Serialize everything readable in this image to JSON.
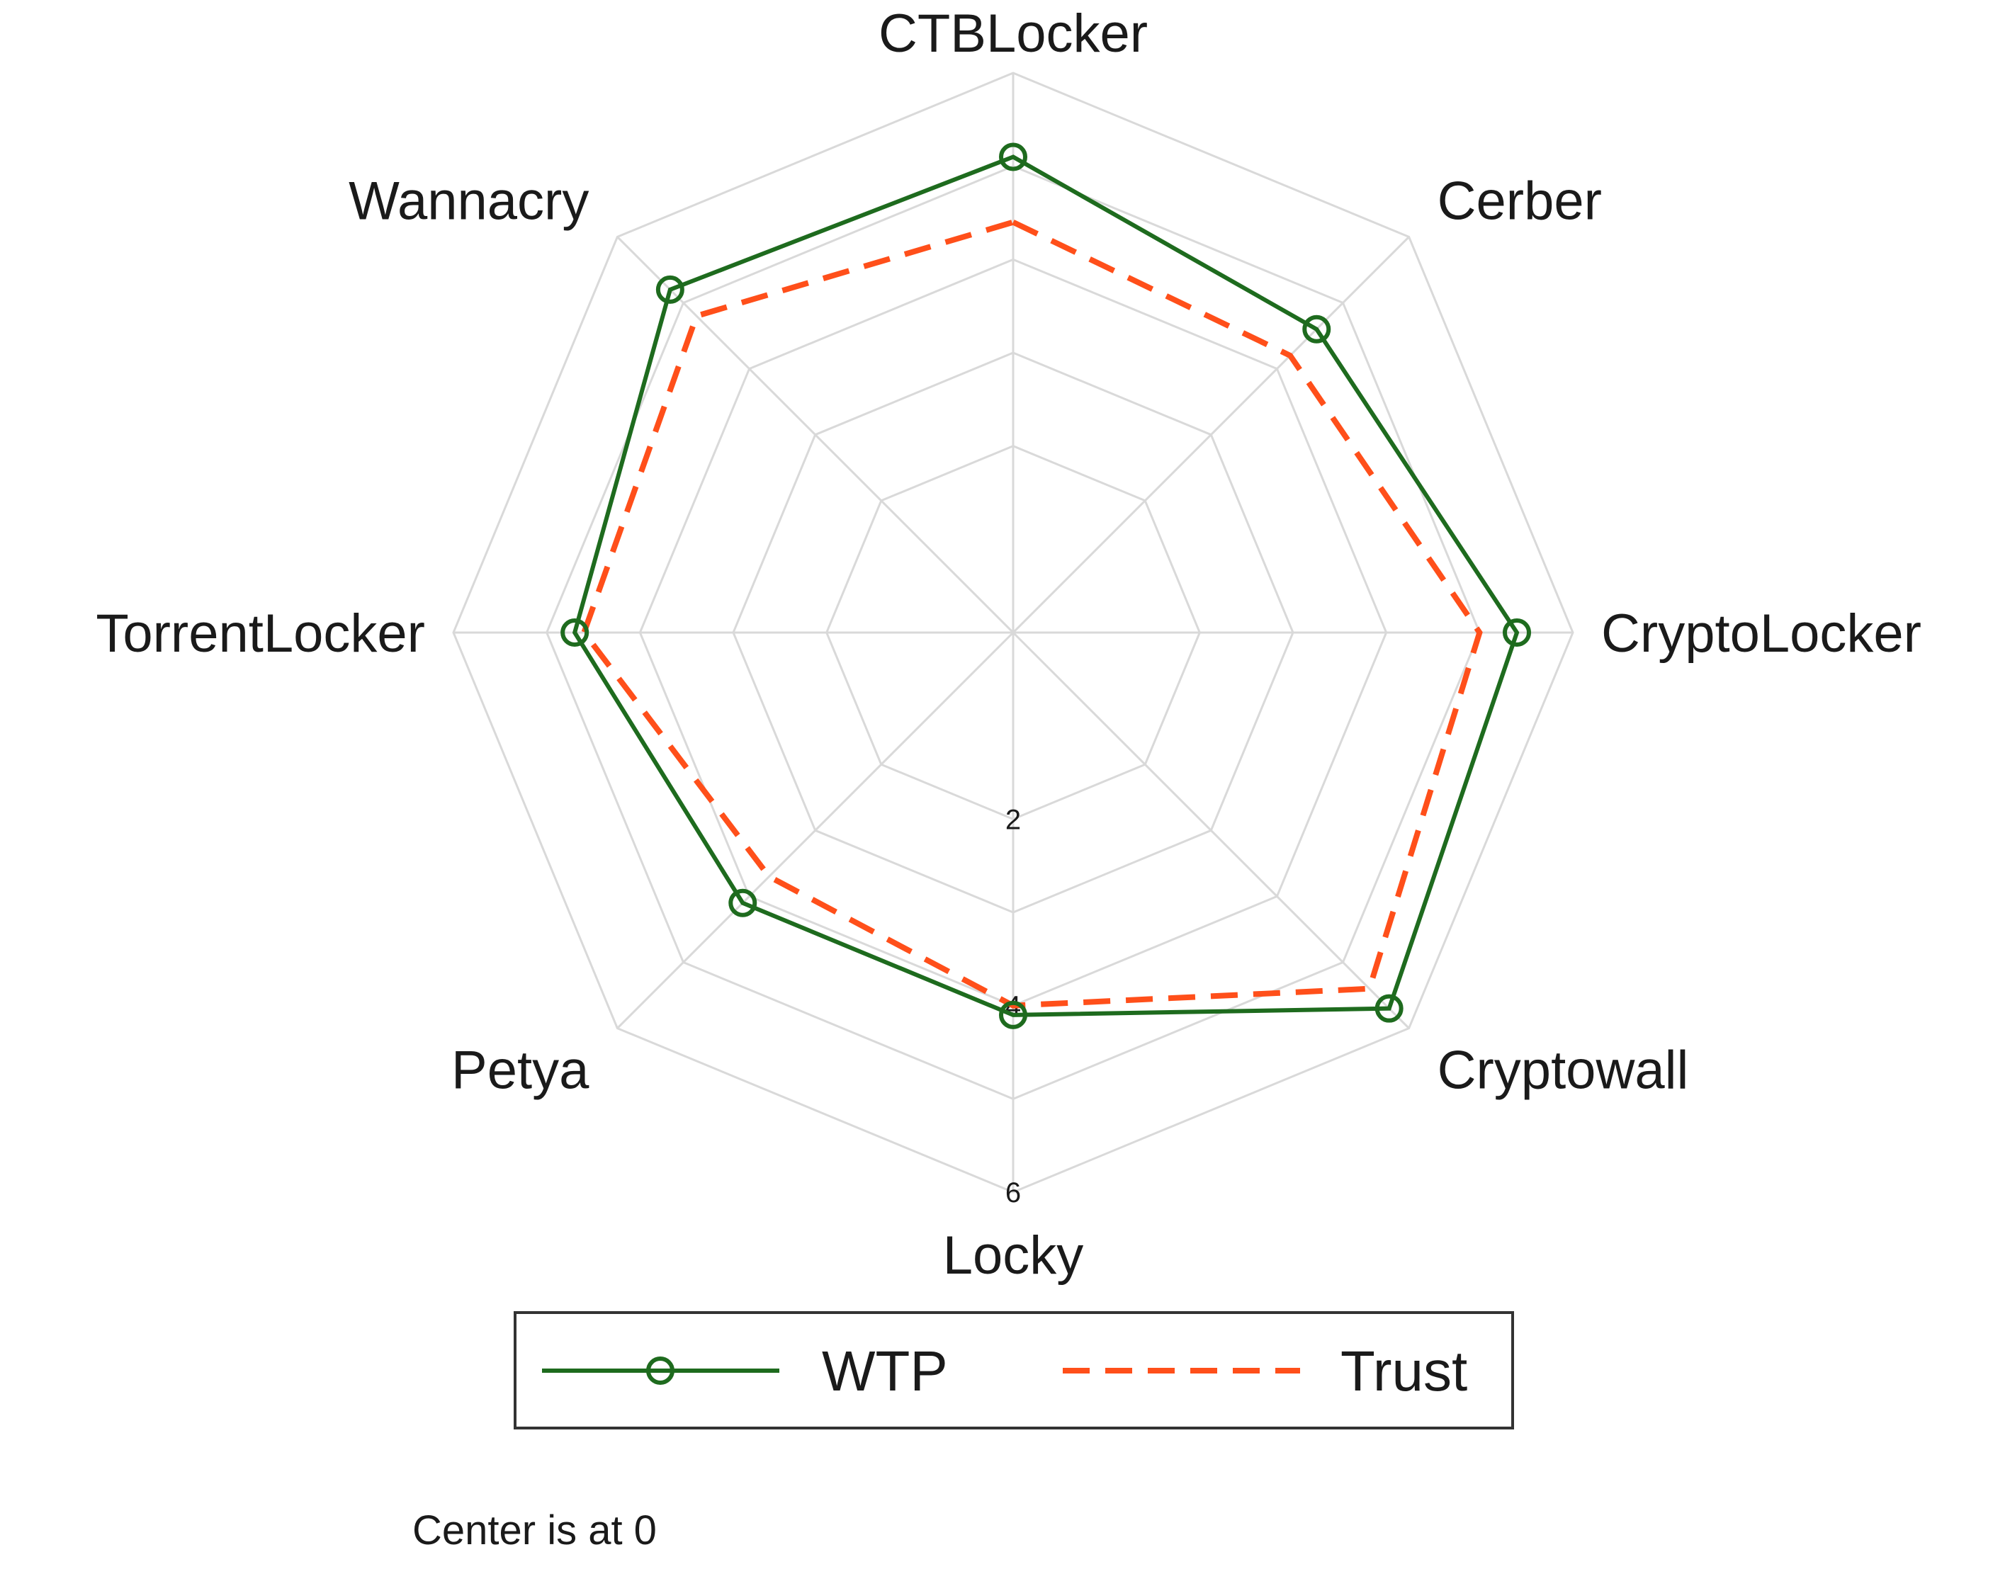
{
  "chart_data": {
    "type": "radar",
    "categories": [
      "CTBLocker",
      "Cerber",
      "CryptoLocker",
      "Cryptowall",
      "Locky",
      "Petya",
      "TorrentLocker",
      "Wannacry"
    ],
    "series": [
      {
        "name": "WTP",
        "values": [
          5.1,
          4.6,
          5.4,
          5.7,
          4.1,
          4.1,
          4.7,
          5.2
        ],
        "color": "#1e6b1e",
        "style": "solid",
        "marker": "circle"
      },
      {
        "name": "Trust",
        "values": [
          4.4,
          4.2,
          5.0,
          5.4,
          4.0,
          3.7,
          4.6,
          4.8
        ],
        "color": "#ff4f1a",
        "style": "dashed",
        "marker": "none"
      }
    ],
    "rlim": [
      0,
      6
    ],
    "ticks": [
      2,
      4,
      6
    ],
    "tick_labels": [
      "2",
      "4",
      "6"
    ],
    "grid_levels": [
      2,
      3,
      4,
      5,
      6
    ],
    "grid": true,
    "grid_color": "#d9d9d9",
    "legend_placement": "bottom",
    "note": "Center is at 0"
  }
}
